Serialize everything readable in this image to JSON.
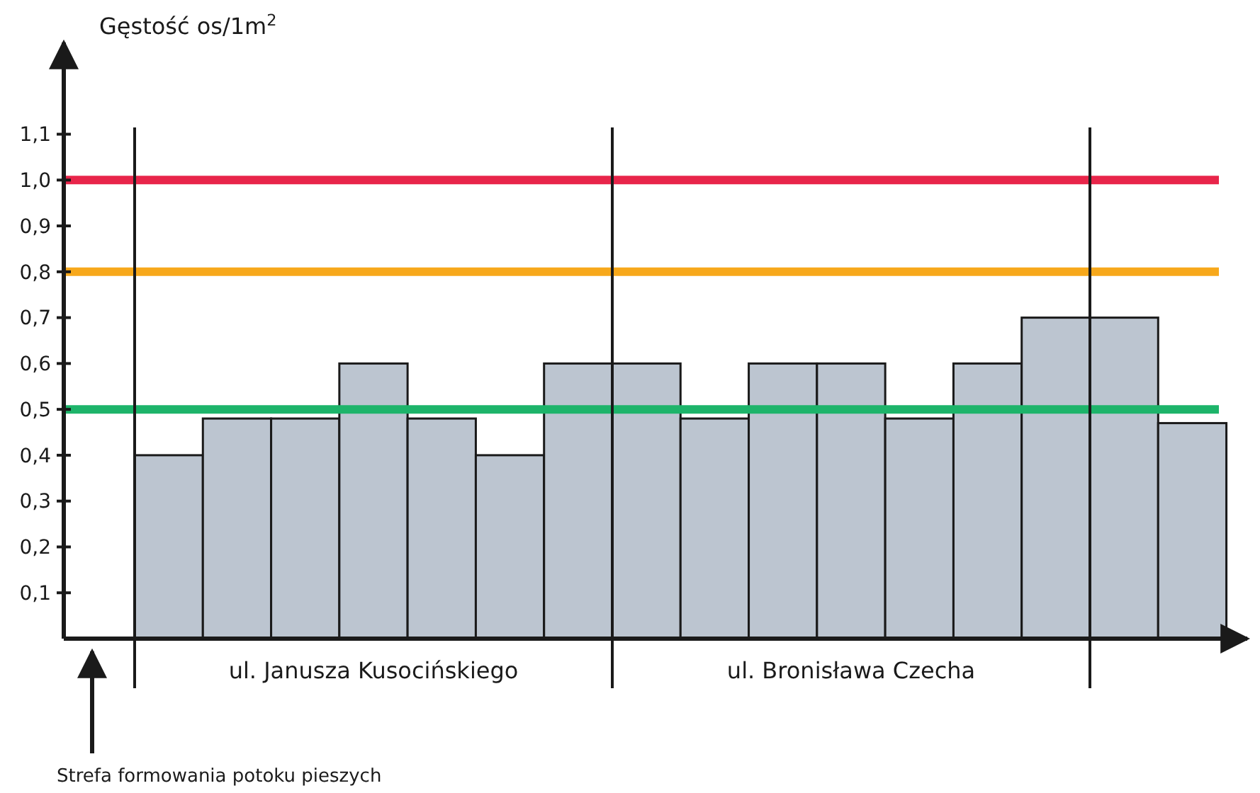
{
  "chart_data": {
    "type": "bar",
    "ylabel": "Gęstość os/1m$^{2}$",
    "categories": [
      null,
      null,
      null,
      null,
      null,
      null,
      null,
      null,
      null,
      null,
      null,
      null,
      null,
      null,
      null,
      null
    ],
    "values": [
      0.4,
      0.48,
      0.48,
      0.6,
      0.48,
      0.4,
      0.6,
      0.6,
      0.48,
      0.6,
      0.6,
      0.48,
      0.6,
      0.7,
      0.7,
      0.47
    ],
    "color": "#bcc5d0",
    "ylim": [
      0,
      1.3
    ],
    "yticks": [
      {
        "value": 0.1,
        "label": "0,1"
      },
      {
        "value": 0.2,
        "label": "0,2"
      },
      {
        "value": 0.3,
        "label": "0,3"
      },
      {
        "value": 0.4,
        "label": "0,4"
      },
      {
        "value": 0.5,
        "label": "0,5"
      },
      {
        "value": 0.6,
        "label": "0,6"
      },
      {
        "value": 0.7,
        "label": "0,7"
      },
      {
        "value": 0.8,
        "label": "0,8"
      },
      {
        "value": 0.9,
        "label": "0,9"
      },
      {
        "value": 1.0,
        "label": "1,0"
      },
      {
        "value": 1.1,
        "label": "1,1"
      }
    ],
    "ref_lines": [
      {
        "axis": "y",
        "value": 1.0,
        "color": "#e8254a"
      },
      {
        "axis": "y",
        "value": 0.8,
        "color": "#f7a81b"
      },
      {
        "axis": "y",
        "value": 0.5,
        "color": "#1db46a"
      }
    ],
    "annotations": [
      "ul. Janusza Kusocińskiego",
      "ul. Bronisława Czecha",
      "Strefa formowania potoku pieszych"
    ]
  }
}
